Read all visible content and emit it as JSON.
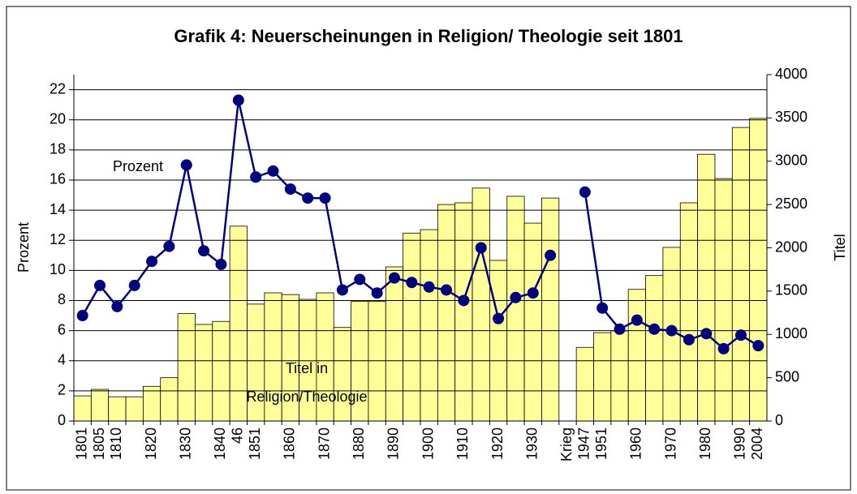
{
  "chart_data": {
    "type": "bar_line",
    "title": "Grafik 4: Neuerscheinungen in Religion/ Theologie seit 1801",
    "ylabel": "Prozent",
    "y2label": "Titel",
    "annotations": [
      "Prozent",
      "Titel in",
      "Religion/Theologie"
    ],
    "categories": [
      "1801",
      "1805",
      "1810",
      null,
      "1820",
      null,
      "1830",
      null,
      "1840",
      "46",
      "1851",
      null,
      "1860",
      null,
      "1870",
      null,
      "1880",
      null,
      "1890",
      null,
      "1900",
      null,
      "1910",
      null,
      "1920",
      null,
      "1930",
      null,
      "Krieg",
      "1947",
      "1951",
      null,
      "1960",
      null,
      "1970",
      null,
      "1980",
      null,
      "1990",
      "2004"
    ],
    "series": [
      {
        "type": "bar",
        "axis": "y2",
        "color": "#ffff99",
        "values": [
          290,
          365,
          280,
          280,
          400,
          500,
          1240,
          1115,
          1150,
          2250,
          1350,
          1480,
          1460,
          1405,
          1480,
          1080,
          1380,
          1380,
          1780,
          2170,
          2210,
          2500,
          2520,
          2690,
          1855,
          2595,
          2285,
          2575,
          null,
          850,
          1020,
          1040,
          1520,
          1680,
          2005,
          2520,
          3080,
          2800,
          3390,
          3495
        ]
      },
      {
        "type": "line",
        "axis": "y",
        "color": "#000080",
        "values": [
          7.0,
          9.0,
          7.6,
          9.0,
          10.6,
          11.6,
          17.0,
          11.3,
          10.4,
          21.3,
          16.2,
          16.6,
          15.4,
          14.8,
          14.8,
          8.7,
          9.4,
          8.5,
          9.5,
          9.2,
          8.9,
          8.7,
          8.0,
          11.5,
          6.8,
          8.2,
          8.5,
          11.0,
          null,
          15.2,
          7.5,
          6.1,
          6.7,
          6.1,
          6.0,
          5.4,
          5.8,
          4.8,
          5.7,
          5.0
        ]
      }
    ],
    "ylim": [
      0,
      23
    ],
    "yticks": [
      0,
      2,
      4,
      6,
      8,
      10,
      12,
      14,
      16,
      18,
      20,
      22
    ],
    "y2lim": [
      0,
      4000
    ],
    "y2ticks": [
      0,
      500,
      1000,
      1500,
      2000,
      2500,
      3000,
      3500,
      4000
    ],
    "grid": true
  }
}
